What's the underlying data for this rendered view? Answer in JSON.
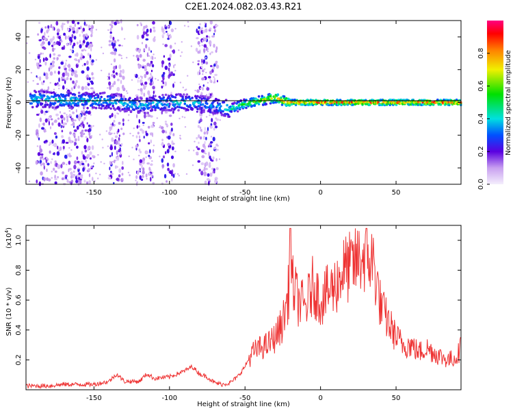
{
  "title": "C2E1.2024.082.03.43.R21",
  "chart_data": [
    {
      "type": "heatmap",
      "xlabel": "Height of straight line (km)",
      "ylabel": "Frequency (Hz)",
      "xlim": [
        -195,
        93
      ],
      "ylim": [
        -50,
        50
      ],
      "xticks": [
        -150,
        -100,
        -50,
        0,
        50
      ],
      "yticks": [
        -40,
        -20,
        0,
        20,
        40
      ],
      "colorbar": {
        "label": "Normalized spectral amplitude",
        "range": [
          0,
          1
        ],
        "ticks": [
          "0.0",
          "0.2",
          "0.4",
          "0.6",
          "0.8"
        ],
        "colormap": "rainbow (white-violet-blue-cyan-green-yellow-orange-red-magenta)"
      },
      "ridge_centerline": {
        "x": [
          -185,
          -160,
          -140,
          -120,
          -100,
          -85,
          -70,
          -60,
          -50,
          -40,
          -30,
          -25,
          -20,
          -10,
          0,
          20,
          50,
          90
        ],
        "y": [
          2,
          1,
          1,
          -2,
          0,
          0,
          -2,
          -4,
          -1,
          1,
          3,
          1,
          0,
          0,
          0,
          0,
          0,
          0
        ]
      },
      "ridge_peak_amplitude": {
        "x": [
          -185,
          -150,
          -120,
          -100,
          -85,
          -70,
          -55,
          -40,
          -30,
          -20,
          -10,
          0,
          20,
          50,
          90
        ],
        "values": [
          0.45,
          0.45,
          0.4,
          0.45,
          0.45,
          0.4,
          0.55,
          0.7,
          0.75,
          0.9,
          0.95,
          0.95,
          0.95,
          0.95,
          0.95
        ]
      },
      "noise_bands_x": [
        [
          -188,
          -150
        ],
        [
          -140,
          -130
        ],
        [
          -122,
          -110
        ],
        [
          -105,
          -97
        ],
        [
          -82,
          -68
        ]
      ],
      "horizontal_line_y": 0
    },
    {
      "type": "line",
      "xlabel": "Height of straight line (km)",
      "ylabel": "SNR (10 * v/v)",
      "ylabel_multiplier": "(x10^4)",
      "xlim": [
        -195,
        93
      ],
      "ylim": [
        0,
        1.1
      ],
      "xticks": [
        -150,
        -100,
        -50,
        0,
        50
      ],
      "yticks": [
        "0.2",
        "0.4",
        "0.6",
        "0.8",
        "1.0"
      ],
      "series": [
        {
          "color": "#ee3333",
          "x": [
            -195,
            -180,
            -170,
            -160,
            -150,
            -140,
            -135,
            -130,
            -120,
            -115,
            -110,
            -100,
            -90,
            -85,
            -80,
            -75,
            -70,
            -65,
            -60,
            -55,
            -50,
            -45,
            -40,
            -35,
            -30,
            -25,
            -22,
            -20,
            -15,
            -10,
            -5,
            0,
            5,
            10,
            15,
            20,
            25,
            30,
            35,
            40,
            45,
            50,
            55,
            60,
            65,
            70,
            75,
            80,
            85,
            90,
            93
          ],
          "y": [
            0.02,
            0.02,
            0.03,
            0.03,
            0.03,
            0.05,
            0.1,
            0.05,
            0.05,
            0.1,
            0.07,
            0.08,
            0.12,
            0.15,
            0.1,
            0.08,
            0.04,
            0.03,
            0.04,
            0.08,
            0.15,
            0.25,
            0.28,
            0.3,
            0.35,
            0.45,
            0.6,
            0.75,
            0.6,
            0.55,
            0.7,
            0.6,
            0.65,
            0.7,
            0.8,
            0.82,
            0.87,
            0.9,
            0.85,
            0.55,
            0.45,
            0.35,
            0.3,
            0.3,
            0.25,
            0.28,
            0.25,
            0.22,
            0.2,
            0.22,
            0.28
          ]
        }
      ]
    }
  ]
}
